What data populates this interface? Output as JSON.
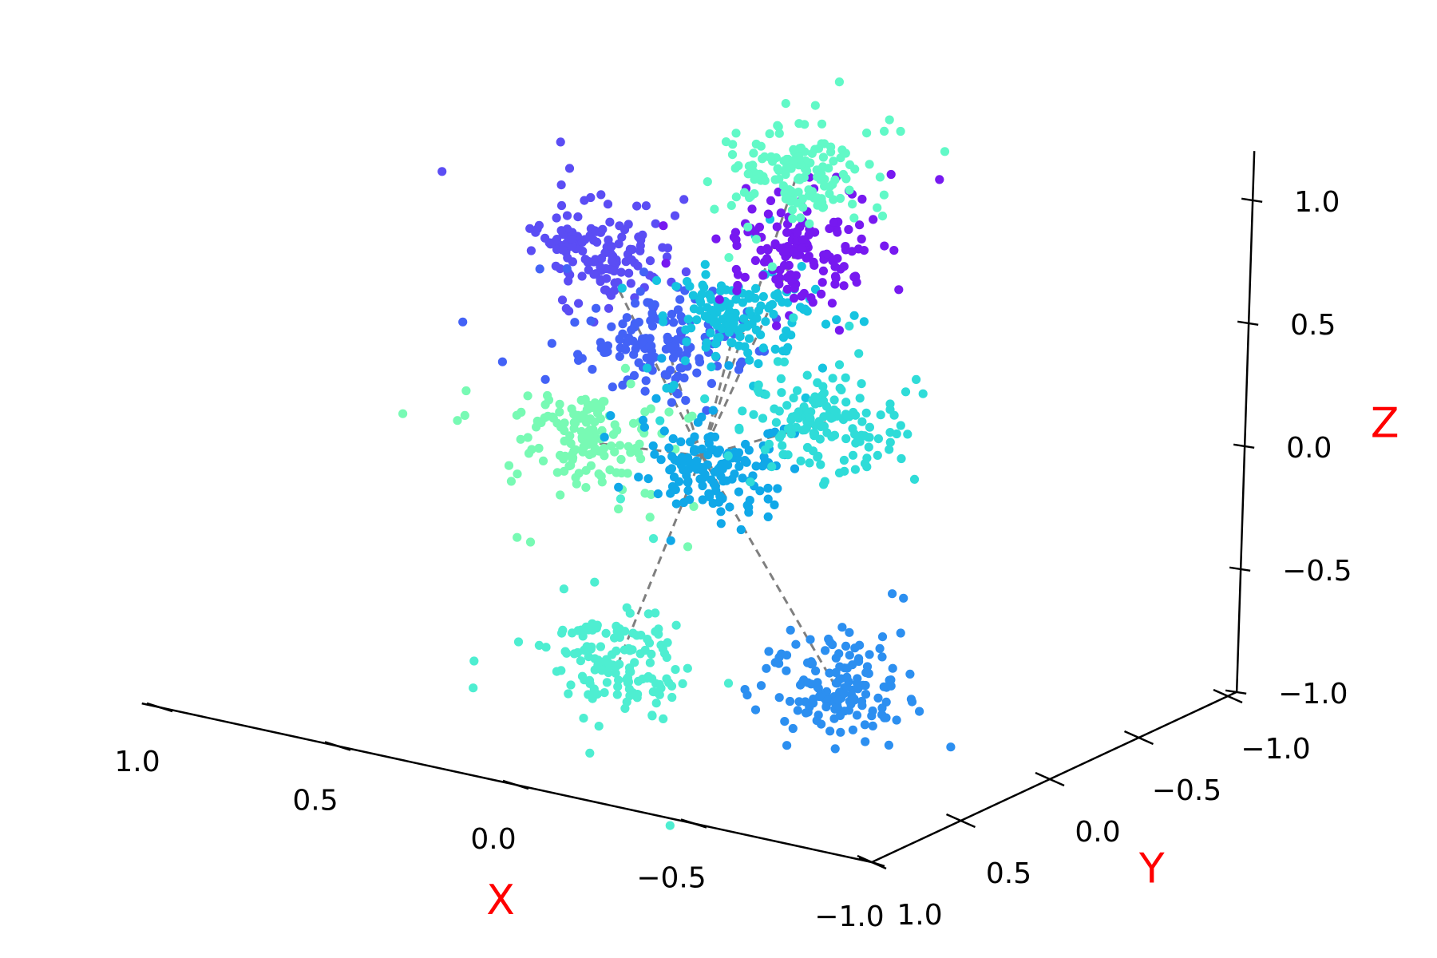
{
  "chart_data": {
    "type": "scatter",
    "projection": "3d",
    "title": "",
    "xlabel": "X",
    "ylabel": "Y",
    "zlabel": "Z",
    "label_color": "#ff0000",
    "xlim": [
      -1.0,
      1.0
    ],
    "ylim": [
      -1.0,
      1.0
    ],
    "zlim": [
      -1.0,
      1.0
    ],
    "x_ticks": [
      "1.0",
      "0.5",
      "0.0",
      "−0.5",
      "−1.0"
    ],
    "y_ticks": [
      "−1.0",
      "−0.5",
      "0.0",
      "0.5",
      "1.0"
    ],
    "z_ticks": [
      "1.0",
      "0.5",
      "0.0",
      "−0.5",
      "−1.0"
    ],
    "grid": false,
    "colormap": "rainbow",
    "center": [
      0.0,
      0.0,
      0.0
    ],
    "connector_color": "#7f7f7f",
    "clusters": [
      {
        "center": [
          0.17,
          0.26,
          0.85
        ],
        "color": "#5b4df4"
      },
      {
        "center": [
          0.06,
          0.1,
          0.47
        ],
        "color": "#4362f6"
      },
      {
        "center": [
          0.0,
          -0.18,
          0.5
        ],
        "color": "#16c4e0"
      },
      {
        "center": [
          0.06,
          -0.62,
          0.6
        ],
        "color": "#7719f0"
      },
      {
        "center": [
          0.15,
          -0.8,
          0.83
        ],
        "color": "#61f9c7"
      },
      {
        "center": [
          0.03,
          0.6,
          0.25
        ],
        "color": "#78fab4"
      },
      {
        "center": [
          -0.02,
          -0.02,
          -0.05
        ],
        "color": "#10a8e8"
      },
      {
        "center": [
          -0.05,
          -0.6,
          -0.05
        ],
        "color": "#2fdcd8"
      },
      {
        "center": [
          0.02,
          0.4,
          -0.72
        ],
        "color": "#4eeed1"
      },
      {
        "center": [
          -0.3,
          -0.2,
          -0.92
        ],
        "color": "#2c8ff0"
      }
    ]
  }
}
